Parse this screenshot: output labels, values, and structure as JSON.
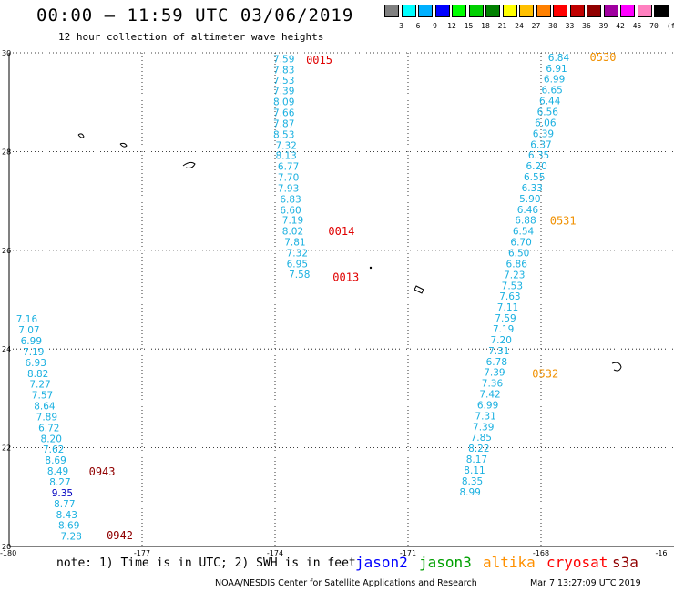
{
  "header": {
    "title": "00:00 – 11:59 UTC 03/06/2019",
    "subtitle": "12 hour collection of altimeter wave heights"
  },
  "legend": {
    "unit": "(ft)",
    "colors": [
      "#808080",
      "#00ffff",
      "#00b0ff",
      "#0000ff",
      "#00ff00",
      "#00d000",
      "#008000",
      "#ffff00",
      "#ffc000",
      "#ff8000",
      "#ff0000",
      "#c00000",
      "#900000",
      "#a000a0",
      "#ff00ff",
      "#ff80c0",
      "#000000"
    ],
    "labels": [
      "3",
      "6",
      "9",
      "12",
      "15",
      "18",
      "21",
      "24",
      "27",
      "30",
      "33",
      "36",
      "39",
      "42",
      "45",
      "70"
    ]
  },
  "map": {
    "x_ticks": [
      "-180",
      "-177",
      "-174",
      "-171",
      "-168",
      "-16"
    ],
    "y_ticks": [
      "30",
      "28",
      "26",
      "24",
      "22",
      "20"
    ],
    "tracks": [
      {
        "id": "track-174",
        "color": "#1ab0e0",
        "points": [
          {
            "v": "7.59",
            "lon": -173.8,
            "lat": 29.88
          },
          {
            "v": "7.83",
            "lon": -173.8,
            "lat": 29.66
          },
          {
            "v": "7.53",
            "lon": -173.8,
            "lat": 29.45
          },
          {
            "v": "7.39",
            "lon": -173.8,
            "lat": 29.23
          },
          {
            "v": "8.09",
            "lon": -173.8,
            "lat": 29.01
          },
          {
            "v": "7.66",
            "lon": -173.8,
            "lat": 28.79
          },
          {
            "v": "7.87",
            "lon": -173.8,
            "lat": 28.57
          },
          {
            "v": "8.53",
            "lon": -173.8,
            "lat": 28.35
          },
          {
            "v": "7.32",
            "lon": -173.75,
            "lat": 28.13
          },
          {
            "v": "8.13",
            "lon": -173.75,
            "lat": 27.92
          },
          {
            "v": "6.77",
            "lon": -173.7,
            "lat": 27.7
          },
          {
            "v": "7.70",
            "lon": -173.7,
            "lat": 27.48
          },
          {
            "v": "7.93",
            "lon": -173.7,
            "lat": 27.26
          },
          {
            "v": "6.83",
            "lon": -173.65,
            "lat": 27.04
          },
          {
            "v": "6.60",
            "lon": -173.65,
            "lat": 26.82
          },
          {
            "v": "7.19",
            "lon": -173.6,
            "lat": 26.61
          },
          {
            "v": "8.02",
            "lon": -173.6,
            "lat": 26.39
          },
          {
            "v": "7.81",
            "lon": -173.55,
            "lat": 26.17
          },
          {
            "v": "7.32",
            "lon": -173.5,
            "lat": 25.95
          },
          {
            "v": "6.95",
            "lon": -173.5,
            "lat": 25.73
          },
          {
            "v": "7.58",
            "lon": -173.45,
            "lat": 25.52
          }
        ]
      },
      {
        "id": "track-168",
        "color": "#1ab0e0",
        "points": [
          {
            "v": "6.84",
            "lon": -167.6,
            "lat": 29.91
          },
          {
            "v": "6.91",
            "lon": -167.65,
            "lat": 29.69
          },
          {
            "v": "6.99",
            "lon": -167.7,
            "lat": 29.47
          },
          {
            "v": "6.65",
            "lon": -167.75,
            "lat": 29.25
          },
          {
            "v": "6.44",
            "lon": -167.8,
            "lat": 29.03
          },
          {
            "v": "6.56",
            "lon": -167.85,
            "lat": 28.81
          },
          {
            "v": "6.06",
            "lon": -167.9,
            "lat": 28.59
          },
          {
            "v": "6.39",
            "lon": -167.95,
            "lat": 28.37
          },
          {
            "v": "6.37",
            "lon": -168.0,
            "lat": 28.15
          },
          {
            "v": "6.35",
            "lon": -168.05,
            "lat": 27.93
          },
          {
            "v": "6.20",
            "lon": -168.1,
            "lat": 27.71
          },
          {
            "v": "6.55",
            "lon": -168.15,
            "lat": 27.49
          },
          {
            "v": "6.33",
            "lon": -168.2,
            "lat": 27.27
          },
          {
            "v": "5.90",
            "lon": -168.25,
            "lat": 27.05
          },
          {
            "v": "6.46",
            "lon": -168.3,
            "lat": 26.83
          },
          {
            "v": "6.88",
            "lon": -168.35,
            "lat": 26.61
          },
          {
            "v": "6.54",
            "lon": -168.4,
            "lat": 26.39
          },
          {
            "v": "6.70",
            "lon": -168.45,
            "lat": 26.17
          },
          {
            "v": "6.50",
            "lon": -168.5,
            "lat": 25.95
          },
          {
            "v": "6.86",
            "lon": -168.55,
            "lat": 25.73
          },
          {
            "v": "7.23",
            "lon": -168.6,
            "lat": 25.51
          },
          {
            "v": "7.53",
            "lon": -168.65,
            "lat": 25.29
          },
          {
            "v": "7.63",
            "lon": -168.7,
            "lat": 25.07
          },
          {
            "v": "7.11",
            "lon": -168.75,
            "lat": 24.85
          },
          {
            "v": "7.59",
            "lon": -168.8,
            "lat": 24.63
          },
          {
            "v": "7.19",
            "lon": -168.85,
            "lat": 24.41
          },
          {
            "v": "7.20",
            "lon": -168.9,
            "lat": 24.19
          },
          {
            "v": "7.31",
            "lon": -168.95,
            "lat": 23.97
          },
          {
            "v": "6.78",
            "lon": -169.0,
            "lat": 23.75
          },
          {
            "v": "7.39",
            "lon": -169.05,
            "lat": 23.53
          },
          {
            "v": "7.36",
            "lon": -169.1,
            "lat": 23.31
          },
          {
            "v": "7.42",
            "lon": -169.15,
            "lat": 23.09
          },
          {
            "v": "6.99",
            "lon": -169.2,
            "lat": 22.87
          },
          {
            "v": "7.31",
            "lon": -169.25,
            "lat": 22.65
          },
          {
            "v": "7.39",
            "lon": -169.3,
            "lat": 22.43
          },
          {
            "v": "7.85",
            "lon": -169.35,
            "lat": 22.21
          },
          {
            "v": "8.22",
            "lon": -169.4,
            "lat": 21.99
          },
          {
            "v": "8.17",
            "lon": -169.45,
            "lat": 21.77
          },
          {
            "v": "8.11",
            "lon": -169.5,
            "lat": 21.55
          },
          {
            "v": "8.35",
            "lon": -169.55,
            "lat": 21.33
          },
          {
            "v": "8.99",
            "lon": -169.6,
            "lat": 21.11
          }
        ]
      },
      {
        "id": "track-180",
        "color": "#1ab0e0",
        "points": [
          {
            "v": "7.16",
            "lon": -179.6,
            "lat": 24.61
          },
          {
            "v": "7.07",
            "lon": -179.55,
            "lat": 24.39
          },
          {
            "v": "6.99",
            "lon": -179.5,
            "lat": 24.17
          },
          {
            "v": "7.19",
            "lon": -179.45,
            "lat": 23.95
          },
          {
            "v": "6.93",
            "lon": -179.4,
            "lat": 23.73
          },
          {
            "v": "8.82",
            "lon": -179.35,
            "lat": 23.51
          },
          {
            "v": "7.27",
            "lon": -179.3,
            "lat": 23.29
          },
          {
            "v": "7.57",
            "lon": -179.25,
            "lat": 23.07
          },
          {
            "v": "8.64",
            "lon": -179.2,
            "lat": 22.85
          },
          {
            "v": "7.89",
            "lon": -179.15,
            "lat": 22.63
          },
          {
            "v": "6.72",
            "lon": -179.1,
            "lat": 22.41
          },
          {
            "v": "8.20",
            "lon": -179.05,
            "lat": 22.19
          },
          {
            "v": "7.62",
            "lon": -179.0,
            "lat": 21.97
          },
          {
            "v": "8.69",
            "lon": -178.95,
            "lat": 21.75
          },
          {
            "v": "8.49",
            "lon": -178.9,
            "lat": 21.53
          },
          {
            "v": "8.27",
            "lon": -178.85,
            "lat": 21.31
          },
          {
            "v": "9.35",
            "lon": -178.8,
            "lat": 21.09,
            "color": "#0000c0"
          },
          {
            "v": "8.77",
            "lon": -178.75,
            "lat": 20.87
          },
          {
            "v": "8.43",
            "lon": -178.7,
            "lat": 20.65
          },
          {
            "v": "8.69",
            "lon": -178.65,
            "lat": 20.43
          },
          {
            "v": "7.28",
            "lon": -178.6,
            "lat": 20.21
          }
        ]
      }
    ],
    "time_labels": [
      {
        "t": "0015",
        "color": "#e00000",
        "lon": -173.3,
        "lat": 29.85
      },
      {
        "t": "0014",
        "color": "#e00000",
        "lon": -172.8,
        "lat": 26.38
      },
      {
        "t": "0013",
        "color": "#e00000",
        "lon": -172.7,
        "lat": 25.45
      },
      {
        "t": "0530",
        "color": "#f09000",
        "lon": -166.9,
        "lat": 29.91
      },
      {
        "t": "0531",
        "color": "#f09000",
        "lon": -167.8,
        "lat": 26.6
      },
      {
        "t": "0532",
        "color": "#f09000",
        "lon": -168.2,
        "lat": 23.5
      },
      {
        "t": "0943",
        "color": "#900000",
        "lon": -178.2,
        "lat": 21.51
      },
      {
        "t": "0942",
        "color": "#900000",
        "lon": -177.8,
        "lat": 20.22
      }
    ]
  },
  "footer": {
    "note": "note: 1) Time is in UTC; 2) SWH is in feet",
    "satellites": [
      {
        "name": "jason2",
        "color": "#0000ff"
      },
      {
        "name": "jason3",
        "color": "#00a000"
      },
      {
        "name": "altika",
        "color": "#ff9000"
      },
      {
        "name": "cryosat",
        "color": "#ff0000"
      },
      {
        "name": "s3a",
        "color": "#900000"
      }
    ],
    "credit": "NOAA/NESDIS Center for Satellite Applications and Research",
    "timestamp": "Mar  7 13:27:09 UTC 2019"
  }
}
